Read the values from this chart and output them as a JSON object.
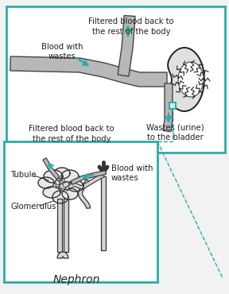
{
  "bg_color": "#f2f2f2",
  "teal": "#2aada8",
  "black": "#222222",
  "vessel_fill": "#b8b8b8",
  "vessel_edge": "#444444",
  "kidney_fill": "#e0e0e0",
  "tubule_fill": "#d0d0d0",
  "tubule_edge": "#333333",
  "white": "#ffffff",
  "labels": {
    "filtered_blood_top": "Filtered blood back to\nthe rest of the body",
    "blood_with_wastes_top": "Blood with\nwastes",
    "wastes_urine": "Wastes (urine)\nto the bladder",
    "filtered_blood_bottom": "Filtered blood back to\nthe rest of the body",
    "blood_with_wastes_bottom": "Blood with\nwastes",
    "tubule": "Tubule",
    "glomerulus": "Glomerulus",
    "nephron": "Nephron"
  }
}
